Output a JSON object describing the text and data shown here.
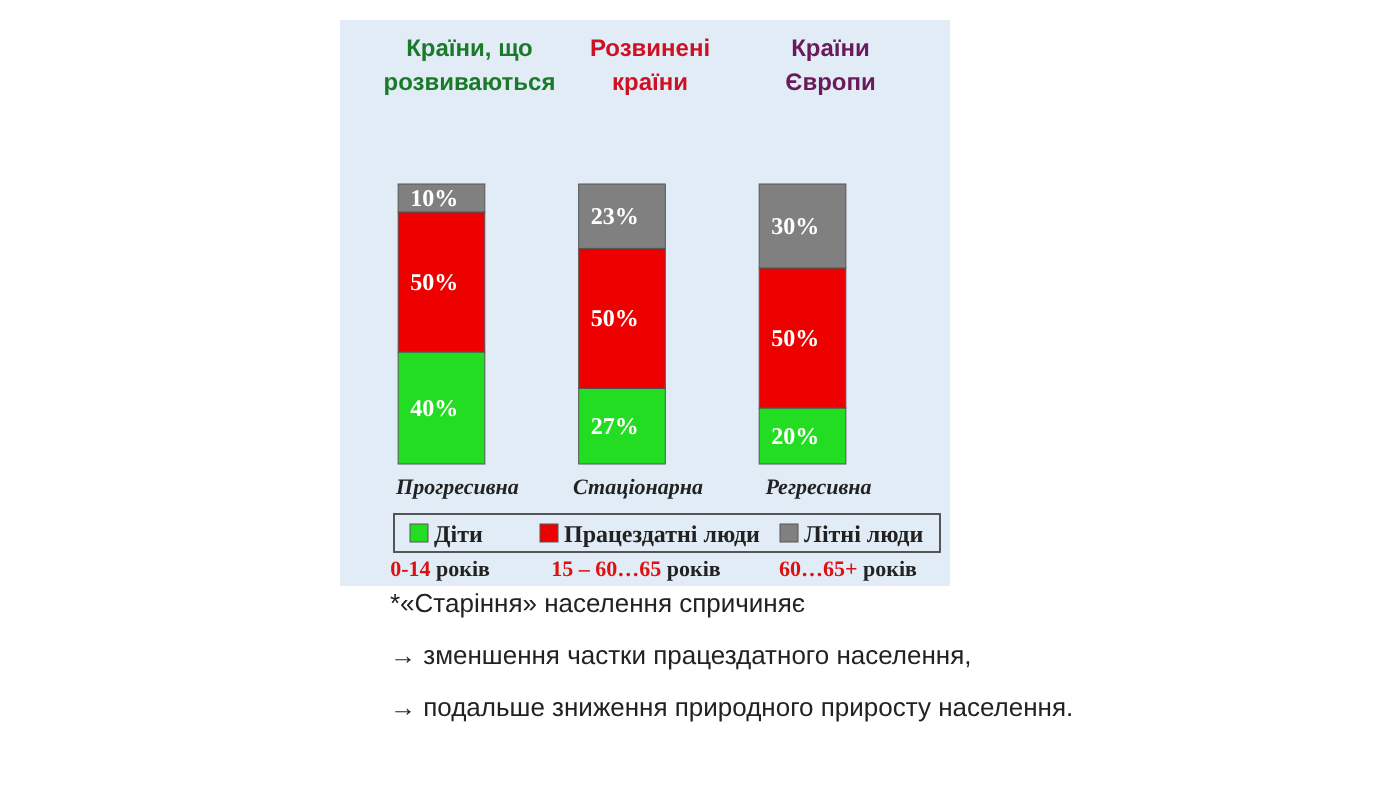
{
  "chart_data": {
    "type": "bar",
    "stacked": true,
    "categories": [
      "Прогресивна",
      "Стаціонарна",
      "Регресивна"
    ],
    "ylim": [
      0,
      100
    ],
    "legend": "bottom",
    "series": [
      {
        "name": "Діти",
        "color": "#22dd22",
        "values": [
          40,
          27,
          20
        ],
        "value_labels": [
          "40%",
          "27%",
          "20%"
        ]
      },
      {
        "name": "Працездатні люди",
        "color": "#ee0000",
        "values": [
          50,
          50,
          50
        ],
        "value_labels": [
          "50%",
          "50%",
          "50%"
        ]
      },
      {
        "name": "Літні люди",
        "color": "#808080",
        "values": [
          10,
          23,
          30
        ],
        "value_labels": [
          "10%",
          "23%",
          "30%"
        ]
      }
    ],
    "annotations": [
      "Країни, що розвиваються",
      "Розвинені країни",
      "Країни Європи",
      "0-14 років",
      "15 – 60…65 років",
      "60…65+ років",
      "*«Старіння» населення спричиняє",
      "→ зменшення частки працездатного населення,",
      "→ подальше зниження природного приросту населення."
    ]
  }
}
